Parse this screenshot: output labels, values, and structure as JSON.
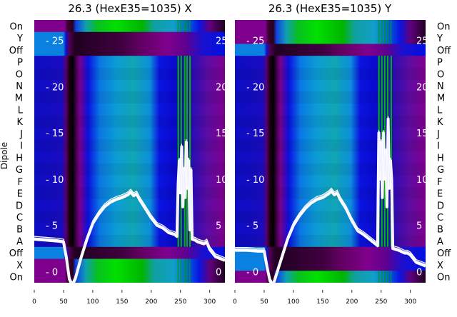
{
  "chart_data": [
    {
      "type": "heatmap",
      "title": "26.3 (HexE35=1035) X",
      "ylabel": "Dipole",
      "row_labels": [
        "On",
        "Y",
        "Off",
        "P",
        "O",
        "N",
        "M",
        "L",
        "K",
        "J",
        "I",
        "H",
        "G",
        "F",
        "E",
        "D",
        "C",
        "B",
        "A",
        "Off",
        "X",
        "On"
      ],
      "xticks": [
        "0",
        "50",
        "100",
        "150",
        "200",
        "250",
        "300"
      ],
      "xlim": [
        0,
        326
      ],
      "inner_yticks": [
        "25",
        "20",
        "15",
        "10",
        "5",
        "0"
      ],
      "inner_ylim": [
        -1.2,
        27.2
      ],
      "bands": [
        {
          "rows": [
            "On"
          ],
          "kind": "on"
        },
        {
          "rows": [
            "Y",
            "Off"
          ],
          "kind": "off"
        },
        {
          "rows": [
            "P",
            "O",
            "N",
            "M",
            "L",
            "K",
            "J",
            "I",
            "H",
            "G",
            "F",
            "E",
            "D",
            "C",
            "B",
            "A"
          ],
          "kind": "body"
        },
        {
          "rows": [
            "Off"
          ],
          "kind": "off"
        },
        {
          "rows": [
            "X",
            "On"
          ],
          "kind": "on"
        }
      ],
      "green_stripes": [
        245,
        250,
        256,
        260,
        265
      ],
      "line": {
        "x": [
          0,
          20,
          40,
          50,
          55,
          60,
          65,
          70,
          80,
          90,
          100,
          110,
          120,
          130,
          140,
          150,
          160,
          165,
          170,
          175,
          180,
          190,
          200,
          210,
          220,
          230,
          240,
          244,
          246,
          248,
          250,
          252,
          254,
          256,
          258,
          260,
          262,
          264,
          266,
          268,
          270,
          275,
          280,
          290,
          295,
          300,
          310,
          326
        ],
        "y": [
          3.5,
          3.4,
          3.3,
          3.2,
          1.5,
          -0.8,
          -1.5,
          -0.8,
          1.5,
          3.5,
          5.2,
          6.2,
          7.0,
          7.5,
          7.8,
          8.0,
          8.3,
          8.6,
          8.2,
          8.4,
          7.8,
          6.8,
          5.8,
          5.0,
          4.7,
          4.2,
          4.0,
          3.8,
          9.5,
          12,
          8.5,
          13.5,
          7,
          11,
          8,
          14,
          9,
          12,
          4.5,
          11,
          3.5,
          3.4,
          3.2,
          3.0,
          3.2,
          2.4,
          1.6,
          1.2
        ]
      }
    },
    {
      "type": "heatmap",
      "title": "26.3 (HexE35=1035) Y",
      "row_labels": [
        "On",
        "Y",
        "Off",
        "P",
        "O",
        "N",
        "M",
        "L",
        "K",
        "J",
        "I",
        "H",
        "G",
        "F",
        "E",
        "D",
        "C",
        "B",
        "A",
        "Off",
        "X",
        "On"
      ],
      "xticks": [
        "0",
        "50",
        "100",
        "150",
        "200",
        "250",
        "300"
      ],
      "xlim": [
        0,
        326
      ],
      "inner_yticks": [
        "25",
        "20",
        "15",
        "10",
        "5",
        "0"
      ],
      "inner_ylim": [
        -1.2,
        27.2
      ],
      "bands": [
        {
          "rows": [
            "On",
            "Y"
          ],
          "kind": "on"
        },
        {
          "rows": [
            "Off"
          ],
          "kind": "off"
        },
        {
          "rows": [
            "P",
            "O",
            "N",
            "M",
            "L",
            "K",
            "J",
            "I",
            "H",
            "G",
            "F",
            "E",
            "D",
            "C",
            "B",
            "A"
          ],
          "kind": "body"
        },
        {
          "rows": [
            "Off",
            "X"
          ],
          "kind": "off"
        },
        {
          "rows": [
            "On"
          ],
          "kind": "on"
        }
      ],
      "green_stripes": [
        245,
        250,
        255,
        260,
        266
      ],
      "line": {
        "x": [
          0,
          20,
          40,
          50,
          55,
          60,
          65,
          70,
          80,
          90,
          100,
          110,
          120,
          130,
          140,
          150,
          160,
          165,
          170,
          175,
          180,
          190,
          200,
          210,
          220,
          240,
          244,
          246,
          248,
          250,
          252,
          254,
          256,
          258,
          260,
          262,
          264,
          266,
          268,
          270,
          275,
          280,
          290,
          295,
          300,
          310,
          326
        ],
        "y": [
          2.3,
          2.3,
          2.2,
          2.2,
          0.5,
          -1.0,
          -1.5,
          -0.5,
          1.5,
          3.5,
          5.0,
          6.0,
          6.8,
          7.4,
          7.8,
          8.0,
          8.4,
          8.7,
          8.3,
          8.5,
          7.8,
          6.8,
          5.5,
          4.4,
          4.0,
          3.0,
          2.8,
          15,
          10,
          14,
          8,
          15,
          10,
          13,
          7,
          16.5,
          9,
          12,
          10,
          2.5,
          2.4,
          2.3,
          2.0,
          2.0,
          1.8,
          1.0,
          0.6
        ]
      }
    }
  ]
}
